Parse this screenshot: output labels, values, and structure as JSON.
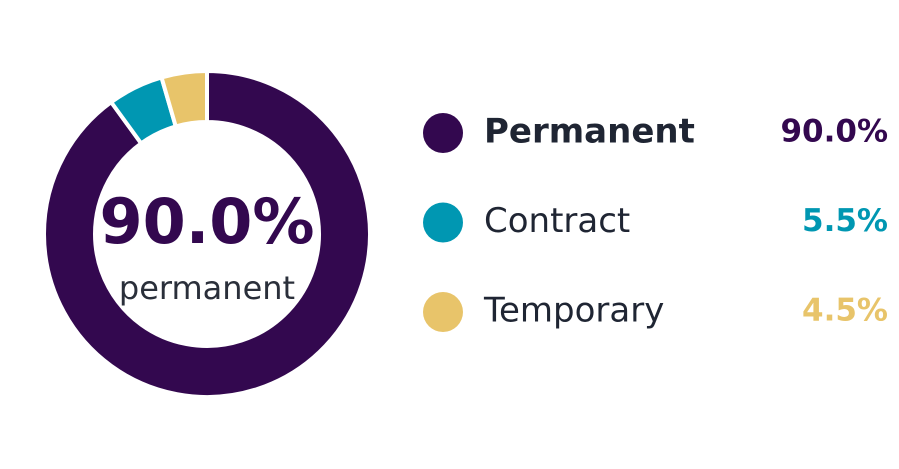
{
  "chart_data": {
    "type": "donut",
    "categories": [
      "Permanent",
      "Contract",
      "Temporary"
    ],
    "values": [
      90.0,
      5.5,
      4.5
    ],
    "value_labels": [
      "90.0%",
      "5.5%",
      "4.5%"
    ],
    "colors": [
      "#33084f",
      "#0097b2",
      "#e8c46a"
    ],
    "center_caption": "permanent"
  }
}
